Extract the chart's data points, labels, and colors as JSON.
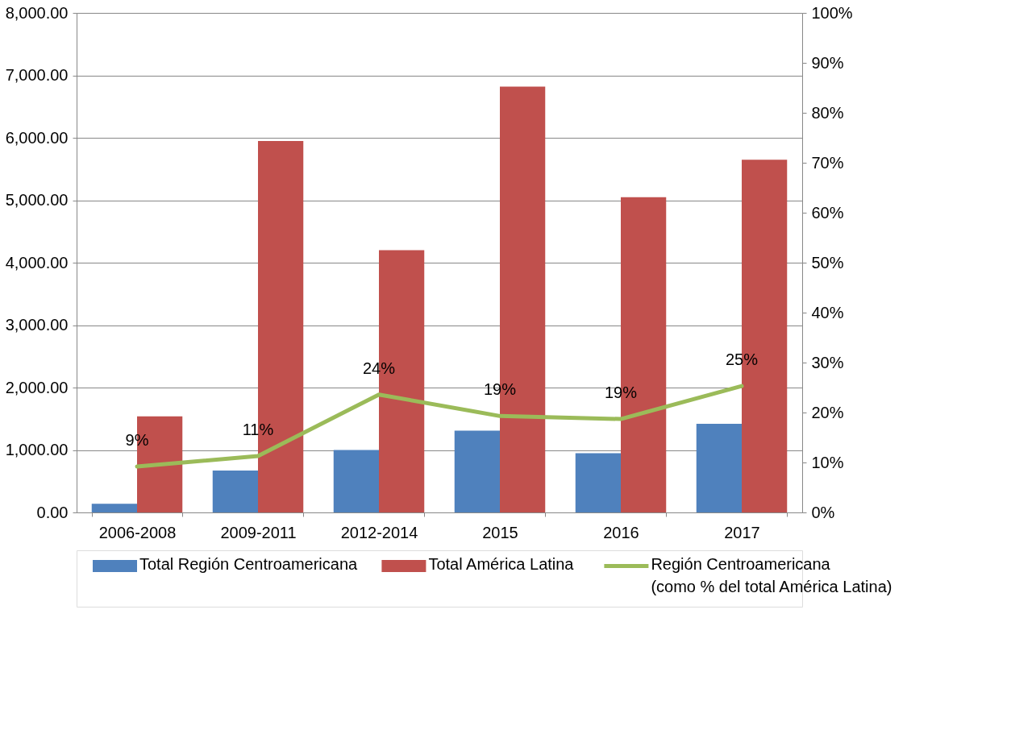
{
  "chart_data": {
    "type": "bar",
    "categories": [
      "2006-2008",
      "2009-2011",
      "2012-2014",
      "2015",
      "2016",
      "2017"
    ],
    "series": [
      {
        "name": "Total Región Centroamericana",
        "type": "bar",
        "color": "#4f81bd",
        "values": [
          140,
          670,
          1000,
          1310,
          950,
          1420
        ]
      },
      {
        "name": "Total América Latina",
        "type": "bar",
        "color": "#c0504d",
        "values": [
          1540,
          5950,
          4200,
          6820,
          5050,
          5650
        ]
      },
      {
        "name": "Región Centroamericana\n(como % del total América Latina)",
        "type": "line",
        "axis": "y2",
        "color": "#9bbb59",
        "values": [
          9.2,
          11.3,
          23.6,
          19.3,
          18.7,
          25.3
        ],
        "value_labels": [
          "9%",
          "11%",
          "24%",
          "19%",
          "19%",
          "25%"
        ]
      }
    ],
    "ylim": [
      0,
      8000
    ],
    "yticks": [
      {
        "value": 0,
        "label": "0.00"
      },
      {
        "value": 1000,
        "label": "1,000.00"
      },
      {
        "value": 2000,
        "label": "2,000.00"
      },
      {
        "value": 3000,
        "label": "3,000.00"
      },
      {
        "value": 4000,
        "label": "4,000.00"
      },
      {
        "value": 5000,
        "label": "5,000.00"
      },
      {
        "value": 6000,
        "label": "6,000.00"
      },
      {
        "value": 7000,
        "label": "7,000.00"
      },
      {
        "value": 8000,
        "label": "8,000.00"
      }
    ],
    "y2lim": [
      0,
      100
    ],
    "y2ticks": [
      {
        "value": 0,
        "label": "0%"
      },
      {
        "value": 10,
        "label": "10%"
      },
      {
        "value": 20,
        "label": "20%"
      },
      {
        "value": 30,
        "label": "30%"
      },
      {
        "value": 40,
        "label": "40%"
      },
      {
        "value": 50,
        "label": "50%"
      },
      {
        "value": 60,
        "label": "60%"
      },
      {
        "value": 70,
        "label": "70%"
      },
      {
        "value": 80,
        "label": "80%"
      },
      {
        "value": 90,
        "label": "90%"
      },
      {
        "value": 100,
        "label": "100%"
      }
    ],
    "grid": "y",
    "legend": "bottom",
    "marker": "none",
    "line_style": "solid"
  }
}
